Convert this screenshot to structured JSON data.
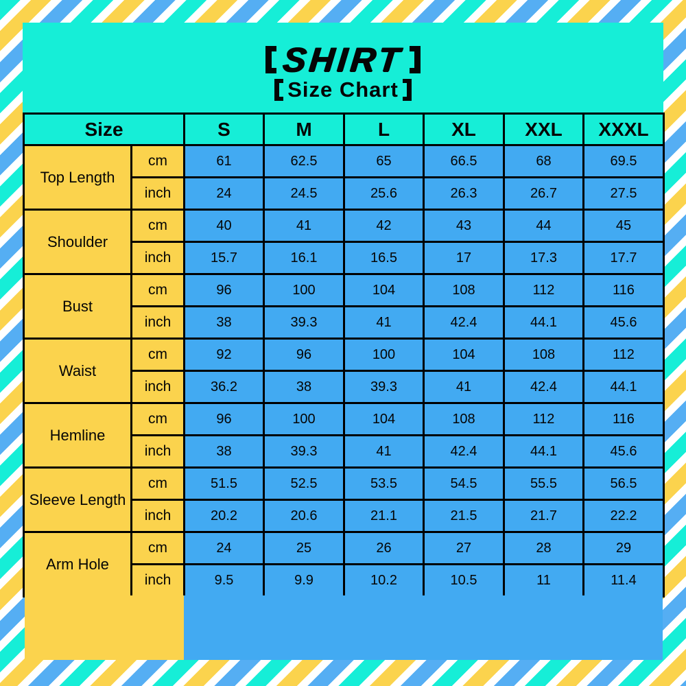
{
  "title": {
    "main_full": "【SHIRT】",
    "sub_full": "【Size Chart】"
  },
  "colors": {
    "turquoise": "#16EED7",
    "stripe_yellow": "#FBD34D",
    "stripe_blue": "#55AEF3",
    "cell_yellow": "#FBD34D",
    "cell_blue": "#42AAF2",
    "stripe_white": "#FFFFFF",
    "border_black": "#000000"
  },
  "chart_data": {
    "type": "table",
    "title": "SHIRT",
    "subtitle": "Size Chart",
    "corner_label": "Size",
    "size_columns": [
      "S",
      "M",
      "L",
      "XL",
      "XXL",
      "XXXL"
    ],
    "unit_labels": [
      "cm",
      "inch"
    ],
    "measurements": [
      {
        "label": "Top Length",
        "cm": [
          "61",
          "62.5",
          "65",
          "66.5",
          "68",
          "69.5"
        ],
        "inch": [
          "24",
          "24.5",
          "25.6",
          "26.3",
          "26.7",
          "27.5"
        ]
      },
      {
        "label": "Shoulder",
        "cm": [
          "40",
          "41",
          "42",
          "43",
          "44",
          "45"
        ],
        "inch": [
          "15.7",
          "16.1",
          "16.5",
          "17",
          "17.3",
          "17.7"
        ]
      },
      {
        "label": "Bust",
        "cm": [
          "96",
          "100",
          "104",
          "108",
          "112",
          "116"
        ],
        "inch": [
          "38",
          "39.3",
          "41",
          "42.4",
          "44.1",
          "45.6"
        ]
      },
      {
        "label": "Waist",
        "cm": [
          "92",
          "96",
          "100",
          "104",
          "108",
          "112"
        ],
        "inch": [
          "36.2",
          "38",
          "39.3",
          "41",
          "42.4",
          "44.1"
        ]
      },
      {
        "label": "Hemline",
        "cm": [
          "96",
          "100",
          "104",
          "108",
          "112",
          "116"
        ],
        "inch": [
          "38",
          "39.3",
          "41",
          "42.4",
          "44.1",
          "45.6"
        ]
      },
      {
        "label": "Sleeve Length",
        "cm": [
          "51.5",
          "52.5",
          "53.5",
          "54.5",
          "55.5",
          "56.5"
        ],
        "inch": [
          "20.2",
          "20.6",
          "21.1",
          "21.5",
          "21.7",
          "22.2"
        ]
      },
      {
        "label": "Arm Hole",
        "cm": [
          "24",
          "25",
          "26",
          "27",
          "28",
          "29"
        ],
        "inch": [
          "9.5",
          "9.9",
          "10.2",
          "10.5",
          "11",
          "11.4"
        ]
      }
    ]
  }
}
